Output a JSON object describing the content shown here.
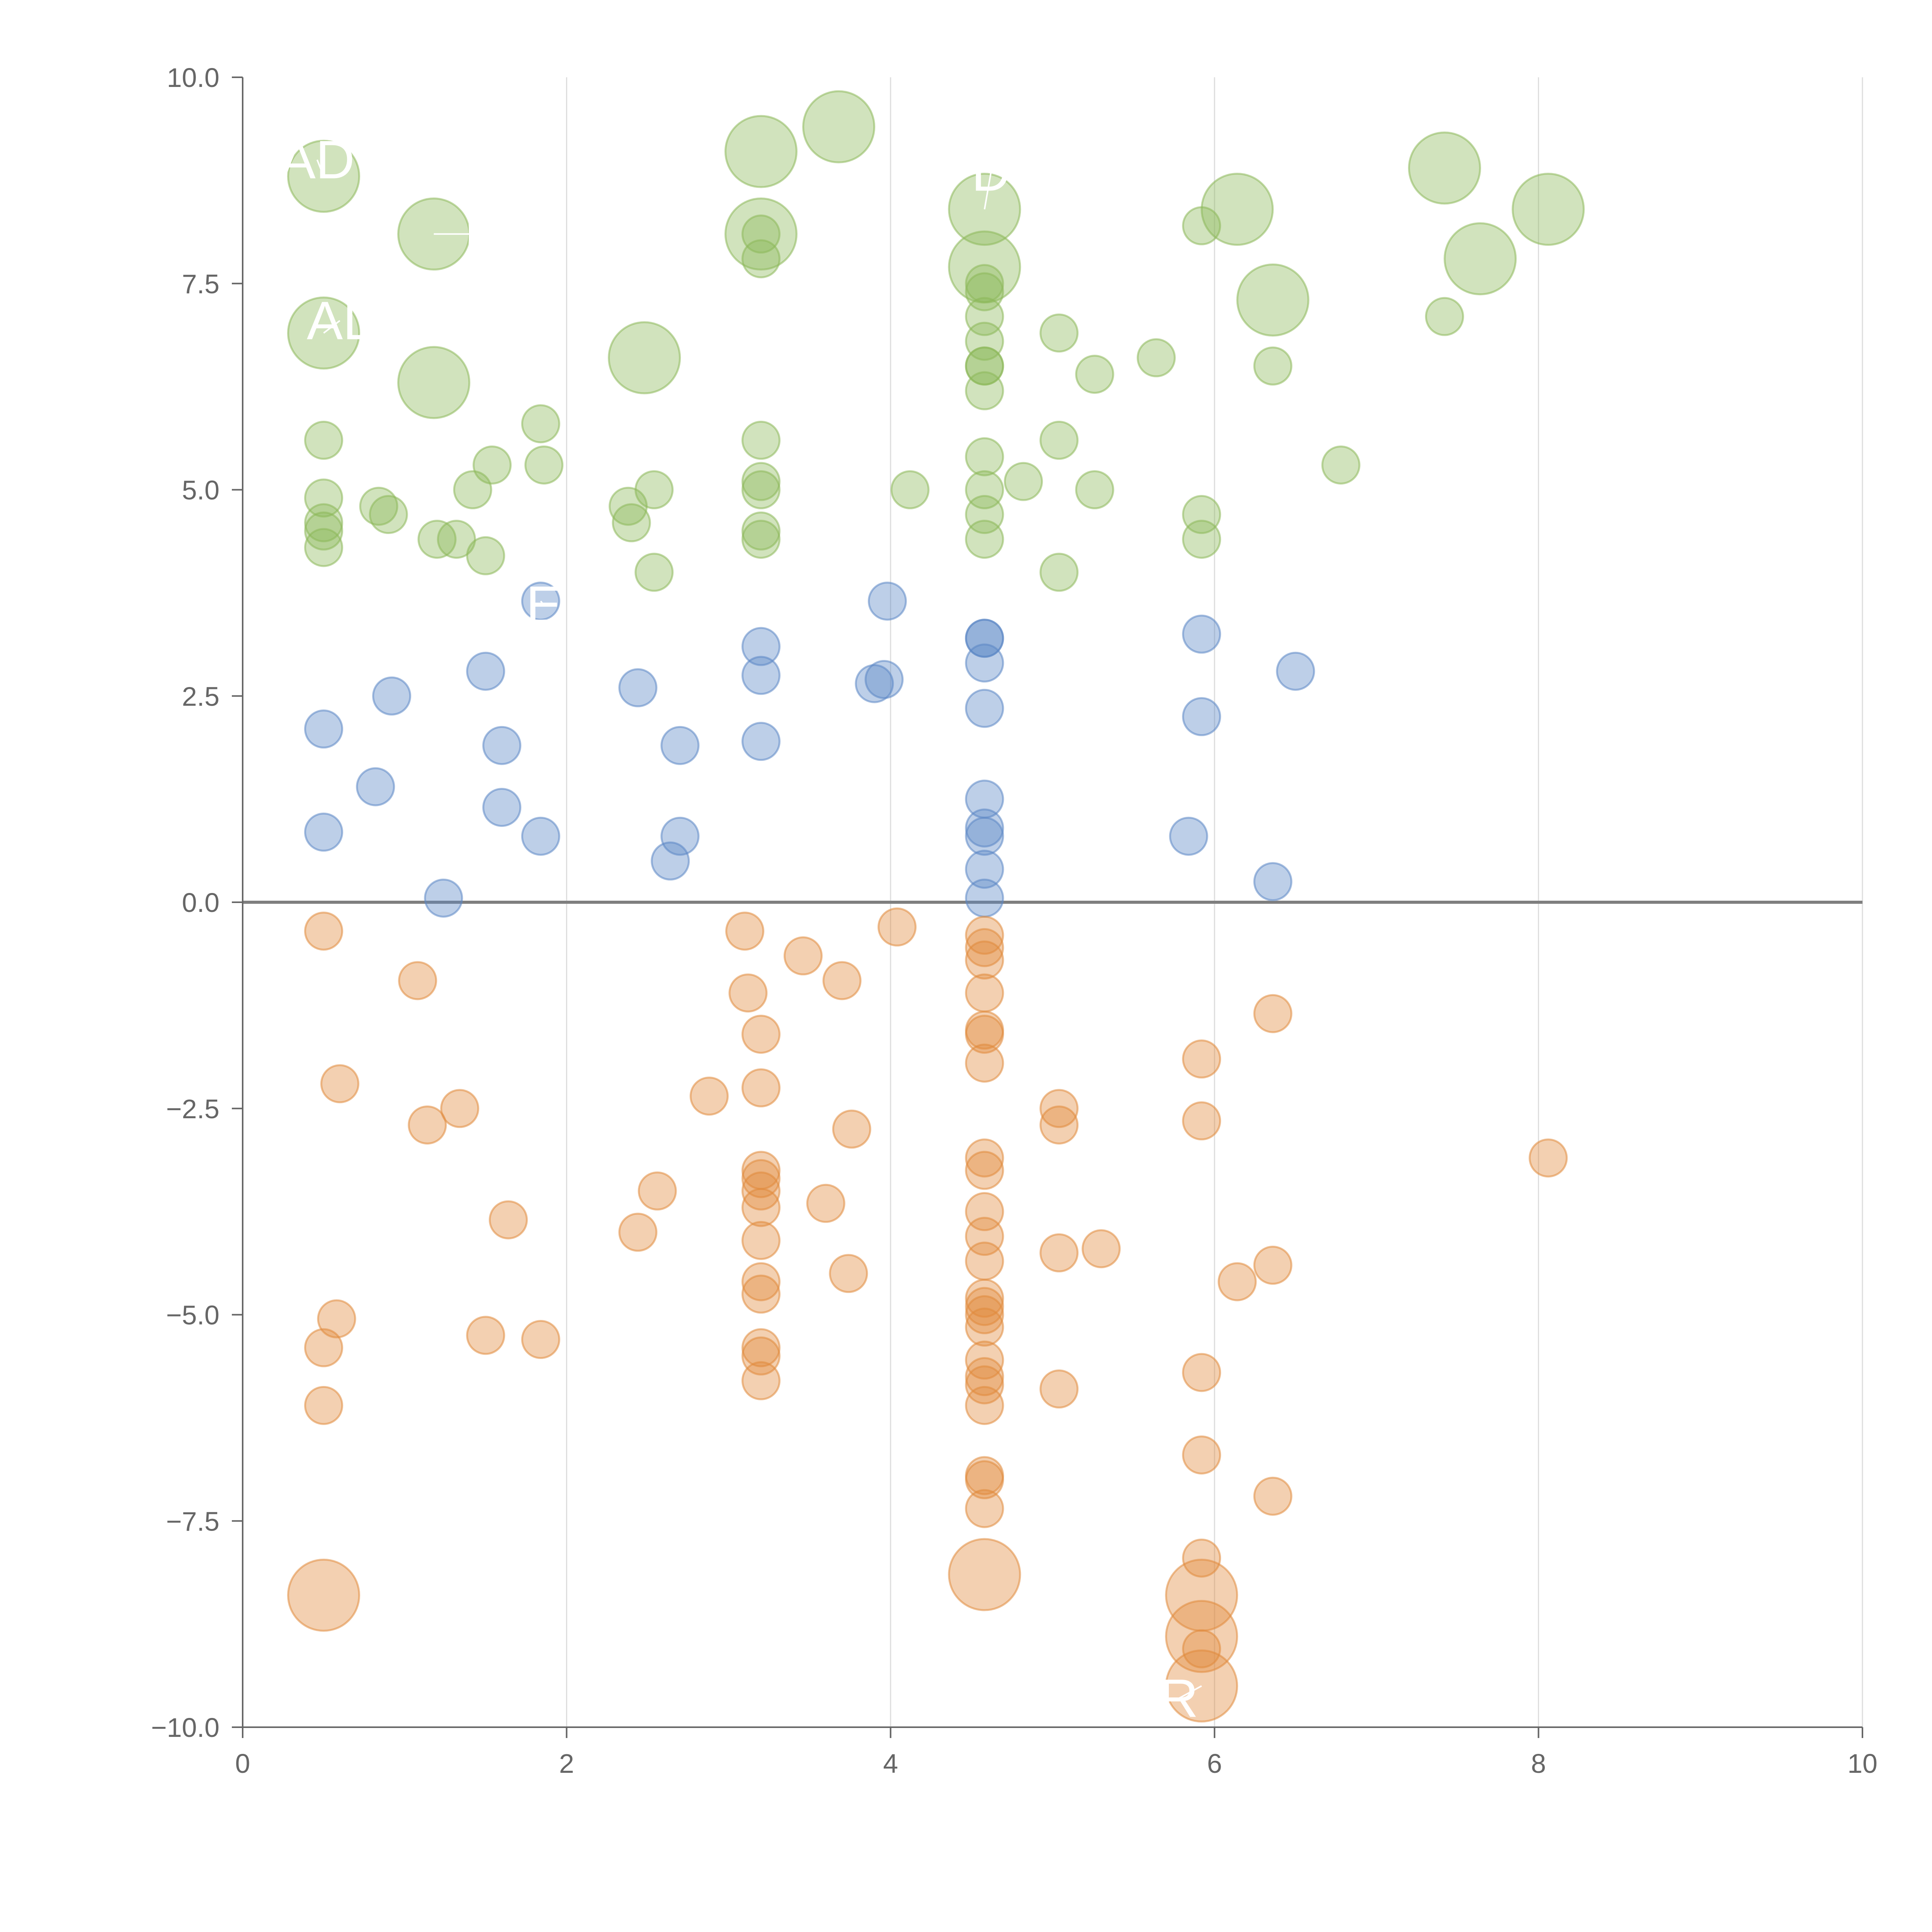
{
  "chart_data": {
    "type": "scatter",
    "title": "",
    "xlabel": "",
    "ylabel": "",
    "xlim": [
      0,
      10
    ],
    "ylim": [
      -10,
      10
    ],
    "x_ticks": [
      "0",
      "2",
      "4",
      "6",
      "8",
      "10"
    ],
    "y_ticks": [
      "−10.0",
      "−7.5",
      "−5.0",
      "−2.5",
      "0.0",
      "2.5",
      "5.0",
      "7.5",
      "10.0"
    ],
    "x_tick_values": [
      0,
      2,
      4,
      6,
      8,
      10
    ],
    "y_tick_values": [
      -10,
      -7.5,
      -5,
      -2.5,
      0,
      2.5,
      5,
      7.5,
      10
    ],
    "grid": "vertical",
    "legend": "none",
    "colors": {
      "green": "#8db85a",
      "blue": "#5b86c5",
      "orange": "#e08a3c",
      "axis": "#666666",
      "grid": "#dddddd"
    },
    "series": [
      {
        "color": "green",
        "points": [
          [
            0.5,
            8.8,
            3
          ],
          [
            1.18,
            8.1,
            3
          ],
          [
            0.5,
            6.9,
            3
          ],
          [
            1.18,
            6.3,
            3
          ],
          [
            2.48,
            6.6,
            3
          ],
          [
            3.2,
            9.1,
            3
          ],
          [
            3.68,
            9.4,
            3
          ],
          [
            3.2,
            8.1,
            3
          ],
          [
            4.58,
            8.4,
            3
          ],
          [
            4.58,
            7.7,
            3
          ],
          [
            6.14,
            8.4,
            3
          ],
          [
            6.36,
            7.3,
            3
          ],
          [
            7.42,
            8.9,
            3
          ],
          [
            7.64,
            7.8,
            3
          ],
          [
            8.06,
            8.4,
            3
          ],
          [
            0.5,
            5.6,
            1
          ],
          [
            0.5,
            4.9,
            1
          ],
          [
            0.5,
            4.6,
            1
          ],
          [
            0.5,
            4.5,
            1
          ],
          [
            0.5,
            4.3,
            1
          ],
          [
            0.84,
            4.8,
            1
          ],
          [
            0.9,
            4.7,
            1
          ],
          [
            1.2,
            4.4,
            1
          ],
          [
            1.32,
            4.4,
            1
          ],
          [
            1.5,
            4.2,
            1
          ],
          [
            1.42,
            5.0,
            1
          ],
          [
            1.54,
            5.3,
            1
          ],
          [
            1.84,
            5.8,
            1
          ],
          [
            1.86,
            5.3,
            1
          ],
          [
            2.38,
            4.8,
            1
          ],
          [
            2.4,
            4.6,
            1
          ],
          [
            2.54,
            5.0,
            1
          ],
          [
            2.54,
            4.0,
            1
          ],
          [
            3.2,
            8.1,
            1
          ],
          [
            3.2,
            7.8,
            1
          ],
          [
            3.2,
            5.6,
            1
          ],
          [
            3.2,
            5.1,
            1
          ],
          [
            3.2,
            5.0,
            1
          ],
          [
            3.2,
            4.5,
            1
          ],
          [
            3.2,
            4.4,
            1
          ],
          [
            4.12,
            5.0,
            1
          ],
          [
            4.58,
            7.5,
            1
          ],
          [
            4.58,
            7.4,
            1
          ],
          [
            4.58,
            7.1,
            1
          ],
          [
            4.58,
            6.8,
            1
          ],
          [
            4.58,
            6.5,
            1
          ],
          [
            4.58,
            6.5,
            1
          ],
          [
            4.58,
            6.2,
            1
          ],
          [
            4.58,
            5.4,
            1
          ],
          [
            4.58,
            5.0,
            1
          ],
          [
            4.58,
            4.7,
            1
          ],
          [
            4.58,
            4.4,
            1
          ],
          [
            4.82,
            5.1,
            1
          ],
          [
            5.04,
            6.9,
            1
          ],
          [
            5.04,
            5.6,
            1
          ],
          [
            5.04,
            4.0,
            1
          ],
          [
            5.26,
            6.4,
            1
          ],
          [
            5.26,
            5.0,
            1
          ],
          [
            5.64,
            6.6,
            1
          ],
          [
            5.92,
            8.2,
            1
          ],
          [
            5.92,
            4.7,
            1
          ],
          [
            5.92,
            4.4,
            1
          ],
          [
            6.36,
            6.5,
            1
          ],
          [
            6.78,
            5.3,
            1
          ],
          [
            7.42,
            7.1,
            1
          ]
        ]
      },
      {
        "color": "blue",
        "points": [
          [
            1.84,
            3.65,
            1
          ],
          [
            0.5,
            2.1,
            1
          ],
          [
            0.5,
            0.85,
            1
          ],
          [
            0.82,
            1.4,
            1
          ],
          [
            0.92,
            2.5,
            1
          ],
          [
            1.24,
            0.05,
            1
          ],
          [
            1.5,
            2.8,
            1
          ],
          [
            1.6,
            1.9,
            1
          ],
          [
            1.6,
            1.15,
            1
          ],
          [
            1.84,
            0.8,
            1
          ],
          [
            2.44,
            2.6,
            1
          ],
          [
            2.64,
            0.5,
            1
          ],
          [
            2.7,
            1.9,
            1
          ],
          [
            2.7,
            0.8,
            1
          ],
          [
            3.2,
            3.1,
            1
          ],
          [
            3.2,
            2.75,
            1
          ],
          [
            3.2,
            1.95,
            1
          ],
          [
            3.9,
            2.65,
            1
          ],
          [
            3.96,
            2.7,
            1
          ],
          [
            3.98,
            3.65,
            1
          ],
          [
            4.58,
            3.2,
            1
          ],
          [
            4.58,
            3.2,
            1
          ],
          [
            4.58,
            2.9,
            1
          ],
          [
            4.58,
            2.35,
            1
          ],
          [
            4.58,
            1.25,
            1
          ],
          [
            4.58,
            0.9,
            1
          ],
          [
            4.58,
            0.8,
            1
          ],
          [
            4.58,
            0.4,
            1
          ],
          [
            4.58,
            0.05,
            1
          ],
          [
            5.84,
            0.8,
            1
          ],
          [
            5.92,
            3.25,
            1
          ],
          [
            5.92,
            2.25,
            1
          ],
          [
            6.36,
            0.25,
            1
          ],
          [
            6.5,
            2.8,
            1
          ]
        ]
      },
      {
        "color": "orange",
        "points": [
          [
            0.5,
            -8.4,
            3
          ],
          [
            4.58,
            -8.15,
            3
          ],
          [
            5.92,
            -8.4,
            3
          ],
          [
            5.92,
            -8.9,
            3
          ],
          [
            5.92,
            -9.5,
            3
          ],
          [
            0.5,
            -0.35,
            1
          ],
          [
            0.5,
            -5.4,
            1
          ],
          [
            0.5,
            -6.1,
            1
          ],
          [
            0.58,
            -5.05,
            1
          ],
          [
            0.6,
            -2.2,
            1
          ],
          [
            1.08,
            -0.95,
            1
          ],
          [
            1.14,
            -2.7,
            1
          ],
          [
            1.34,
            -2.5,
            1
          ],
          [
            1.5,
            -5.25,
            1
          ],
          [
            1.64,
            -3.85,
            1
          ],
          [
            1.84,
            -5.3,
            1
          ],
          [
            2.44,
            -4.0,
            1
          ],
          [
            2.56,
            -3.5,
            1
          ],
          [
            2.88,
            -2.35,
            1
          ],
          [
            3.1,
            -0.35,
            1
          ],
          [
            3.12,
            -1.1,
            1
          ],
          [
            3.2,
            -1.6,
            1
          ],
          [
            3.2,
            -2.25,
            1
          ],
          [
            3.2,
            -3.25,
            1
          ],
          [
            3.2,
            -3.35,
            1
          ],
          [
            3.2,
            -3.5,
            1
          ],
          [
            3.2,
            -3.7,
            1
          ],
          [
            3.2,
            -4.1,
            1
          ],
          [
            3.2,
            -4.6,
            1
          ],
          [
            3.2,
            -4.75,
            1
          ],
          [
            3.2,
            -5.4,
            1
          ],
          [
            3.2,
            -5.5,
            1
          ],
          [
            3.2,
            -5.8,
            1
          ],
          [
            3.46,
            -0.65,
            1
          ],
          [
            3.6,
            -3.65,
            1
          ],
          [
            3.7,
            -0.95,
            1
          ],
          [
            3.74,
            -4.5,
            1
          ],
          [
            3.76,
            -2.75,
            1
          ],
          [
            4.04,
            -0.3,
            1
          ],
          [
            4.58,
            -0.4,
            1
          ],
          [
            4.58,
            -0.55,
            1
          ],
          [
            4.58,
            -0.7,
            1
          ],
          [
            4.58,
            -1.1,
            1
          ],
          [
            4.58,
            -1.55,
            1
          ],
          [
            4.58,
            -1.6,
            1
          ],
          [
            4.58,
            -1.95,
            1
          ],
          [
            4.58,
            -3.1,
            1
          ],
          [
            4.58,
            -3.25,
            1
          ],
          [
            4.58,
            -3.75,
            1
          ],
          [
            4.58,
            -4.05,
            1
          ],
          [
            4.58,
            -4.35,
            1
          ],
          [
            4.58,
            -4.8,
            1
          ],
          [
            4.58,
            -4.9,
            1
          ],
          [
            4.58,
            -5.0,
            1
          ],
          [
            4.58,
            -5.15,
            1
          ],
          [
            4.58,
            -5.55,
            1
          ],
          [
            4.58,
            -5.75,
            1
          ],
          [
            4.58,
            -5.85,
            1
          ],
          [
            4.58,
            -6.1,
            1
          ],
          [
            4.58,
            -6.95,
            1
          ],
          [
            4.58,
            -7.0,
            1
          ],
          [
            4.58,
            -7.35,
            1
          ],
          [
            5.04,
            -2.5,
            1
          ],
          [
            5.04,
            -2.7,
            1
          ],
          [
            5.04,
            -4.25,
            1
          ],
          [
            5.04,
            -5.9,
            1
          ],
          [
            5.3,
            -4.2,
            1
          ],
          [
            5.92,
            -1.9,
            1
          ],
          [
            5.92,
            -2.65,
            1
          ],
          [
            5.92,
            -5.7,
            1
          ],
          [
            5.92,
            -6.7,
            1
          ],
          [
            5.92,
            -7.95,
            1
          ],
          [
            5.92,
            -9.05,
            1
          ],
          [
            6.14,
            -4.6,
            1
          ],
          [
            6.36,
            -1.35,
            1
          ],
          [
            6.36,
            -4.4,
            1
          ],
          [
            6.36,
            -7.2,
            1
          ],
          [
            8.06,
            -3.1,
            1
          ]
        ]
      }
    ],
    "labels": [
      {
        "text": "AD",
        "x": 0.46,
        "y": 9.0,
        "px": 0.5,
        "py": 8.8
      },
      {
        "text": "AL",
        "x": 0.6,
        "y": 7.05,
        "px": 0.5,
        "py": 6.9
      },
      {
        "text": "E",
        "x": 1.48,
        "y": 8.1,
        "px": 1.18,
        "py": 8.1
      },
      {
        "text": "E",
        "x": 1.86,
        "y": 3.6,
        "px": 1.84,
        "py": 3.65
      },
      {
        "text": "D",
        "x": 4.62,
        "y": 8.85,
        "px": 4.58,
        "py": 8.4
      },
      {
        "text": "R",
        "x": 5.78,
        "y": -9.65,
        "px": 5.92,
        "py": -9.5
      }
    ]
  }
}
